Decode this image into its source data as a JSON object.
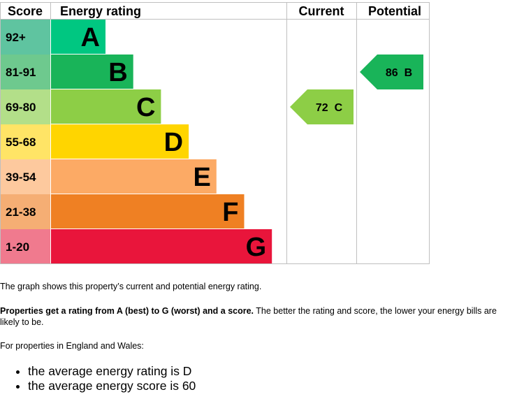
{
  "chart_data": {
    "type": "bar",
    "headers": {
      "score": "Score",
      "rating": "Energy rating",
      "current": "Current",
      "potential": "Potential"
    },
    "bands": [
      {
        "letter": "A",
        "range": "92+",
        "min": 92,
        "max": 100,
        "color": "#00c781",
        "score_bg": "#5fc4a0"
      },
      {
        "letter": "B",
        "range": "81-91",
        "min": 81,
        "max": 91,
        "color": "#19b459",
        "score_bg": "#6ec98e"
      },
      {
        "letter": "C",
        "range": "69-80",
        "min": 69,
        "max": 80,
        "color": "#8dce46",
        "score_bg": "#b3df89"
      },
      {
        "letter": "D",
        "range": "55-68",
        "min": 55,
        "max": 68,
        "color": "#ffd500",
        "score_bg": "#ffe466"
      },
      {
        "letter": "E",
        "range": "39-54",
        "min": 39,
        "max": 54,
        "color": "#fcaa65",
        "score_bg": "#fdc99e"
      },
      {
        "letter": "F",
        "range": "21-38",
        "min": 21,
        "max": 38,
        "color": "#ef8023",
        "score_bg": "#f5ae74"
      },
      {
        "letter": "G",
        "range": "1-20",
        "min": 1,
        "max": 20,
        "color": "#e9153b",
        "score_bg": "#f07a8e"
      }
    ],
    "current": {
      "score": 72,
      "letter": "C",
      "label": "72  C",
      "color": "#8dce46"
    },
    "potential": {
      "score": 86,
      "letter": "B",
      "label": "86  B",
      "color": "#19b459"
    }
  },
  "text": {
    "intro": "The graph shows this property’s current and potential energy rating.",
    "ratings_bold": "Properties get a rating from A (best) to G (worst) and a score.",
    "ratings_rest": " The better the rating and score, the lower your energy bills are likely to be.",
    "region": "For properties in England and Wales:",
    "bullets": [
      "the average energy rating is D",
      "the average energy score is 60"
    ]
  }
}
